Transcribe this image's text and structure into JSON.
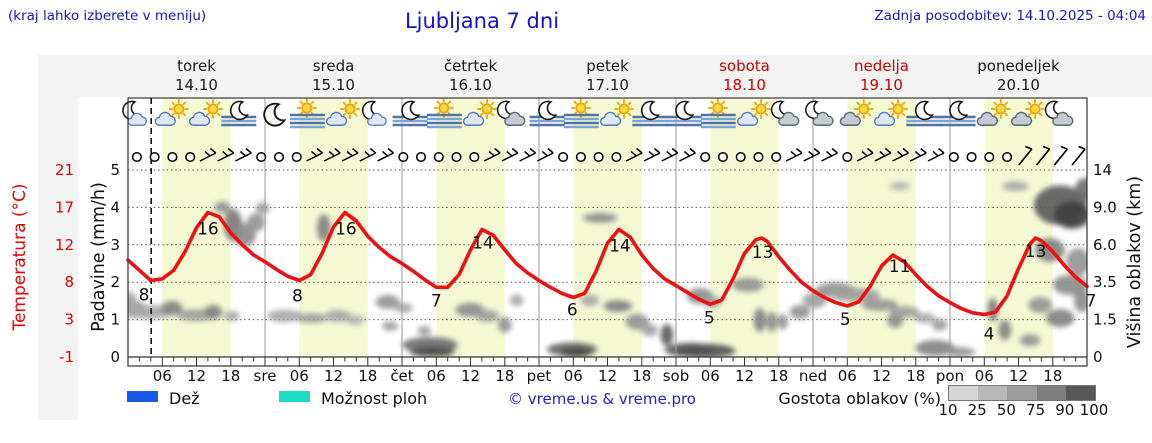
{
  "header": {
    "note": "(kraj lahko izberete v meniju)",
    "title": "Ljubljana 7 dni",
    "updated": "Zadnja posodobitev: 14.10.2025 - 04:04"
  },
  "axes": {
    "temperature": {
      "title": "Temperatura (°C)",
      "ticks": [
        "21",
        "17",
        "12",
        "8",
        "3",
        "-1"
      ],
      "color": "#e20000"
    },
    "precipitation": {
      "title": "Padavine (mm/h)",
      "ticks": [
        "5",
        "4",
        "3",
        "2",
        "1",
        "0"
      ]
    },
    "cloud_height": {
      "title": "Višina oblakov (km)",
      "ticks": [
        "14",
        "9.0",
        "6.0",
        "3.5",
        "1.5",
        "0"
      ]
    }
  },
  "x_axis": {
    "hour_labels": [
      "06",
      "12",
      "18"
    ],
    "day_abbrevs": [
      "sre",
      "čet",
      "pet",
      "sob",
      "ned",
      "pon"
    ]
  },
  "legend": {
    "rain_label": "Dež",
    "rain_color": "#1859ea",
    "showers_label": "Možnost ploh",
    "showers_color": "#1ed9c4",
    "copyright": "© vreme.us & vreme.pro",
    "cloud_density_label": "Gostota oblakov (%)",
    "cloud_density_ticks": [
      "10",
      "25",
      "50",
      "75",
      "90",
      "100"
    ],
    "cloud_density_colors": [
      "#d6d6d6",
      "#b9b9b9",
      "#9c9c9c",
      "#7e7e7e",
      "#585858"
    ]
  },
  "chart_data": {
    "type": "line",
    "title": "Ljubljana 7 dni",
    "ylabel_left": "Temperatura (°C) / Padavine (mm/h)",
    "ylabel_right": "Višina oblakov (km)",
    "x_range_hours": [
      0,
      168
    ],
    "now_hour": 4.07,
    "grid": true,
    "days": [
      {
        "name": "torek",
        "date": "14.10",
        "weekend": false,
        "tmin": 8,
        "tmax": 16,
        "icons": [
          "moon-cloud",
          "sun-cloud",
          "sun-cloud",
          "moon-fog"
        ]
      },
      {
        "name": "sreda",
        "date": "15.10",
        "weekend": false,
        "tmin": 8,
        "tmax": 16,
        "icons": [
          "moon",
          "fog-sun",
          "sun-cloud",
          "moon-cloud"
        ]
      },
      {
        "name": "četrtek",
        "date": "16.10",
        "weekend": false,
        "tmin": 7,
        "tmax": 14,
        "icons": [
          "moon-fog",
          "fog-sun",
          "sun-cloud",
          "moon-graycloud"
        ]
      },
      {
        "name": "petek",
        "date": "17.10",
        "weekend": false,
        "tmin": 6,
        "tmax": 14,
        "icons": [
          "moon-fog",
          "fog-sun",
          "sun-cloud",
          "moon-fog"
        ]
      },
      {
        "name": "sobota",
        "date": "18.10",
        "weekend": true,
        "tmin": 5,
        "tmax": 13,
        "icons": [
          "moon-fog",
          "fog-sun",
          "sun-cloud",
          "moon-graycloud"
        ]
      },
      {
        "name": "nedelja",
        "date": "19.10",
        "weekend": true,
        "tmin": 5,
        "tmax": 11,
        "icons": [
          "moon-graycloud",
          "sun-graycloud",
          "sun-cloud",
          "moon-fog"
        ]
      },
      {
        "name": "ponedeljek",
        "date": "20.10",
        "weekend": false,
        "tmin": 4,
        "tmax": 13,
        "icons": [
          "moon-fog",
          "sun-graycloud",
          "sun-graycloud",
          "moon-graycloud"
        ]
      }
    ],
    "temperature_series": [
      [
        0,
        10.4
      ],
      [
        2,
        9.2
      ],
      [
        4,
        8.0
      ],
      [
        6,
        8.2
      ],
      [
        8,
        9.2
      ],
      [
        10,
        11.4
      ],
      [
        12,
        14.2
      ],
      [
        14,
        16.0
      ],
      [
        16,
        15.5
      ],
      [
        18,
        13.6
      ],
      [
        20,
        12.2
      ],
      [
        22,
        11.0
      ],
      [
        24,
        10.2
      ],
      [
        26,
        9.3
      ],
      [
        28,
        8.5
      ],
      [
        30,
        8.0
      ],
      [
        32,
        8.7
      ],
      [
        34,
        11.2
      ],
      [
        36,
        14.3
      ],
      [
        38,
        16.0
      ],
      [
        40,
        15.0
      ],
      [
        42,
        13.2
      ],
      [
        44,
        11.9
      ],
      [
        46,
        10.8
      ],
      [
        48,
        10.0
      ],
      [
        50,
        9.1
      ],
      [
        52,
        8.1
      ],
      [
        54,
        7.2
      ],
      [
        56,
        7.2
      ],
      [
        58,
        8.7
      ],
      [
        60,
        11.6
      ],
      [
        62,
        14.0
      ],
      [
        64,
        13.3
      ],
      [
        66,
        11.6
      ],
      [
        68,
        10.0
      ],
      [
        70,
        8.9
      ],
      [
        72,
        8.0
      ],
      [
        74,
        7.2
      ],
      [
        76,
        6.5
      ],
      [
        78,
        6.0
      ],
      [
        80,
        6.5
      ],
      [
        82,
        9.1
      ],
      [
        84,
        12.4
      ],
      [
        86,
        14.0
      ],
      [
        88,
        13.1
      ],
      [
        90,
        11.0
      ],
      [
        92,
        9.4
      ],
      [
        94,
        8.2
      ],
      [
        96,
        7.4
      ],
      [
        98,
        6.6
      ],
      [
        100,
        5.8
      ],
      [
        102,
        5.2
      ],
      [
        104,
        5.7
      ],
      [
        106,
        8.2
      ],
      [
        108,
        11.2
      ],
      [
        110,
        12.8
      ],
      [
        111,
        13.0
      ],
      [
        112,
        12.6
      ],
      [
        114,
        10.8
      ],
      [
        116,
        9.2
      ],
      [
        118,
        7.8
      ],
      [
        120,
        6.8
      ],
      [
        122,
        6.0
      ],
      [
        124,
        5.4
      ],
      [
        126,
        5.0
      ],
      [
        128,
        5.5
      ],
      [
        130,
        7.3
      ],
      [
        132,
        9.7
      ],
      [
        134,
        11.0
      ],
      [
        136,
        10.2
      ],
      [
        138,
        8.7
      ],
      [
        140,
        7.3
      ],
      [
        142,
        6.2
      ],
      [
        144,
        5.4
      ],
      [
        146,
        4.7
      ],
      [
        148,
        4.2
      ],
      [
        150,
        4.0
      ],
      [
        152,
        4.3
      ],
      [
        154,
        6.2
      ],
      [
        156,
        9.4
      ],
      [
        158,
        12.3
      ],
      [
        159,
        13.0
      ],
      [
        160,
        12.7
      ],
      [
        162,
        11.4
      ],
      [
        164,
        9.8
      ],
      [
        166,
        8.4
      ],
      [
        168,
        7.3
      ]
    ],
    "temp_labels": [
      [
        "8",
        3.5,
        8,
        -4,
        15
      ],
      [
        "16",
        14,
        16,
        0,
        17
      ],
      [
        "8",
        29.5,
        8,
        1,
        16
      ],
      [
        "16",
        38,
        16,
        1,
        17
      ],
      [
        "7",
        54,
        7.2,
        0,
        14
      ],
      [
        "14",
        62,
        14,
        1,
        14
      ],
      [
        "6",
        78,
        6,
        -1,
        13
      ],
      [
        "14",
        86,
        14,
        1,
        17
      ],
      [
        "5",
        102,
        5.2,
        -1,
        14
      ],
      [
        "13",
        111,
        13,
        1,
        15
      ],
      [
        "5",
        126,
        5,
        -2,
        14
      ],
      [
        "11",
        135,
        11,
        1,
        12
      ],
      [
        "4",
        151,
        4,
        -1,
        20
      ],
      [
        "13",
        159,
        13,
        0,
        14
      ],
      [
        "7",
        168,
        7.3,
        4,
        15
      ]
    ],
    "wind_pattern": "oooobbbooobbbbbooooobbbboooobbbbooooobbbobbbbboooossss",
    "wind_glyph_legend": {
      "o": "calm-circle",
      "b": "wind-barb",
      "s": "strong-wind-barb"
    },
    "clouds": [
      [
        0,
        1.6,
        1.4,
        0.16,
        30
      ],
      [
        0.9,
        1.28,
        2.5,
        0.24,
        35
      ],
      [
        3.9,
        1.2,
        3.9,
        0.19,
        30
      ],
      [
        7.7,
        1.31,
        1.8,
        0.19,
        50
      ],
      [
        11.9,
        1.12,
        3.5,
        0.16,
        35
      ],
      [
        14.9,
        1.2,
        1.6,
        0.19,
        50
      ],
      [
        18.2,
        1.1,
        1.4,
        0.13,
        30
      ],
      [
        16.5,
        4.0,
        1.4,
        0.16,
        40
      ],
      [
        18.4,
        3.53,
        1.6,
        0.43,
        55
      ],
      [
        20.5,
        3.26,
        1.9,
        0.32,
        45
      ],
      [
        22.4,
        3.6,
        1.6,
        0.24,
        40
      ],
      [
        23.6,
        3.98,
        1.2,
        0.16,
        35
      ],
      [
        27.5,
        1.1,
        3.2,
        0.16,
        30
      ],
      [
        32.2,
        1.04,
        2.8,
        0.13,
        35
      ],
      [
        36.8,
        1.1,
        2.3,
        0.16,
        30
      ],
      [
        39.8,
        0.99,
        1.6,
        0.13,
        25
      ],
      [
        45.9,
        0.83,
        1.4,
        0.13,
        35
      ],
      [
        34.3,
        3.45,
        1.2,
        0.37,
        50
      ],
      [
        45.5,
        1.47,
        2.1,
        0.19,
        40
      ],
      [
        48.3,
        1.31,
        1.6,
        0.13,
        30
      ],
      [
        51.9,
        0.7,
        1.2,
        0.13,
        35
      ],
      [
        52.9,
        0.32,
        4.9,
        0.21,
        60
      ],
      [
        53.3,
        0.13,
        3.9,
        0.13,
        80
      ],
      [
        59.9,
        1.26,
        2.5,
        0.19,
        45
      ],
      [
        62.9,
        1.1,
        2.1,
        0.16,
        35
      ],
      [
        66,
        0.86,
        1.2,
        0.21,
        40
      ],
      [
        68.1,
        1.52,
        1.2,
        0.16,
        30
      ],
      [
        82.7,
        3.72,
        3.0,
        0.13,
        45
      ],
      [
        80.9,
        1.52,
        1.6,
        0.16,
        30
      ],
      [
        85.8,
        1.36,
        2.5,
        0.16,
        50
      ],
      [
        89.2,
        0.94,
        2.1,
        0.21,
        40
      ],
      [
        91.4,
        0.72,
        1.4,
        0.16,
        35
      ],
      [
        94.4,
        0.59,
        1.1,
        0.29,
        70
      ],
      [
        77.8,
        0.2,
        4.4,
        0.19,
        65
      ],
      [
        78.5,
        0.12,
        2.8,
        0.13,
        80
      ],
      [
        98.4,
        0.19,
        4.4,
        0.19,
        70
      ],
      [
        100.2,
        1.63,
        2.3,
        0.21,
        45
      ],
      [
        102.3,
        1.47,
        1.6,
        0.16,
        35
      ],
      [
        101.1,
        0.16,
        5.3,
        0.19,
        75
      ],
      [
        108.6,
        1.93,
        2.8,
        0.19,
        40
      ],
      [
        110.7,
        0.99,
        1.1,
        0.32,
        50
      ],
      [
        112.8,
        0.94,
        0.9,
        0.27,
        45
      ],
      [
        114.7,
        0.94,
        0.9,
        0.21,
        40
      ],
      [
        117.7,
        1.2,
        1.8,
        0.19,
        40
      ],
      [
        120.3,
        1.52,
        2.1,
        0.21,
        35
      ],
      [
        123.9,
        1.79,
        3.5,
        0.21,
        40
      ],
      [
        127.4,
        1.66,
        4.4,
        0.19,
        35
      ],
      [
        131.7,
        1.39,
        3.2,
        0.16,
        40
      ],
      [
        134.4,
        0.99,
        1.4,
        0.21,
        45
      ],
      [
        136.1,
        1.2,
        2.6,
        0.16,
        35
      ],
      [
        139.6,
        1.04,
        1.8,
        0.13,
        30
      ],
      [
        142.2,
        0.86,
        1.4,
        0.16,
        35
      ],
      [
        141.4,
        0.24,
        3.5,
        0.21,
        50
      ],
      [
        145.8,
        0.13,
        2.6,
        0.13,
        40
      ],
      [
        151.5,
        1.26,
        0.9,
        0.32,
        55
      ],
      [
        135.2,
        4.57,
        1.8,
        0.11,
        25
      ],
      [
        155.5,
        4.57,
        2.3,
        0.13,
        30
      ],
      [
        163.3,
        4.06,
        4.6,
        0.53,
        70
      ],
      [
        165.4,
        3.8,
        3.2,
        0.37,
        85
      ],
      [
        161.5,
        2.86,
        2.6,
        0.32,
        50
      ],
      [
        166.4,
        2.54,
        2.1,
        0.37,
        40
      ],
      [
        165,
        1.93,
        3.0,
        0.27,
        45
      ],
      [
        159.8,
        1.39,
        2.1,
        0.21,
        40
      ],
      [
        163.3,
        1.04,
        2.5,
        0.24,
        50
      ],
      [
        167.1,
        1.52,
        1.4,
        0.32,
        45
      ],
      [
        158,
        0.45,
        1.8,
        0.16,
        40
      ],
      [
        153.6,
        0.72,
        1.1,
        0.27,
        50
      ],
      [
        167.7,
        4.47,
        1.8,
        0.32,
        60
      ]
    ],
    "colors": {
      "temperature_line": "#ee1111",
      "day_band": "#f4f9d4",
      "weekend_text": "#cc0000",
      "weekday_text": "#1a1a1a"
    }
  }
}
